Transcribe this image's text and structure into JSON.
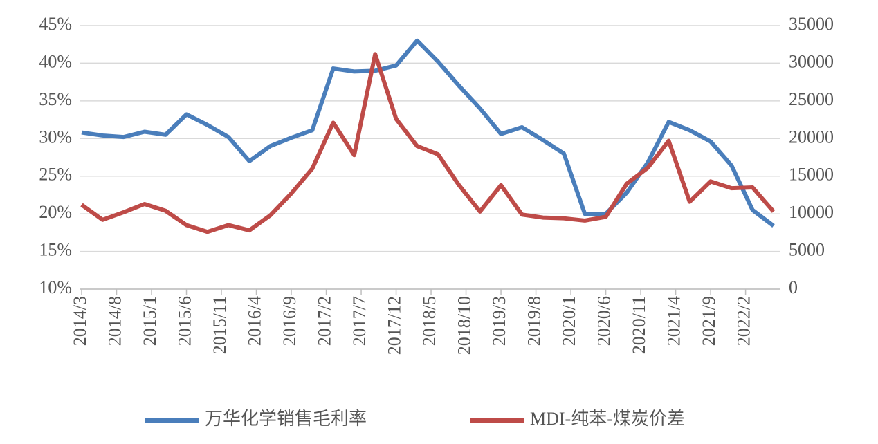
{
  "chart_data": {
    "type": "line",
    "x": [
      "2014/3",
      "2014/6",
      "2014/9",
      "2014/12",
      "2015/3",
      "2015/6",
      "2015/9",
      "2015/12",
      "2016/3",
      "2016/6",
      "2016/9",
      "2016/12",
      "2017/3",
      "2017/6",
      "2017/9",
      "2017/12",
      "2018/3",
      "2018/6",
      "2018/9",
      "2018/12",
      "2019/3",
      "2019/6",
      "2019/9",
      "2019/12",
      "2020/3",
      "2020/6",
      "2020/9",
      "2020/12",
      "2021/3",
      "2021/6",
      "2021/9",
      "2021/12",
      "2022/3",
      "2022/6"
    ],
    "xticks": [
      "2014/3",
      "2014/8",
      "2015/1",
      "2015/6",
      "2015/11",
      "2016/4",
      "2016/9",
      "2017/2",
      "2017/7",
      "2017/12",
      "2018/5",
      "2018/10",
      "2019/3",
      "2019/8",
      "2020/1",
      "2020/6",
      "2020/11",
      "2021/4",
      "2021/9",
      "2022/2"
    ],
    "series": [
      {
        "name": "万华化学销售毛利率",
        "color": "#4a7ebb",
        "values": [
          30.8,
          30.4,
          30.2,
          30.9,
          30.5,
          33.2,
          31.8,
          30.2,
          27.0,
          29.0,
          30.1,
          31.1,
          39.3,
          38.9,
          39.0,
          39.7,
          43.0,
          40.2,
          37.0,
          34.0,
          30.6,
          31.5,
          29.8,
          28.0,
          20.0,
          20.0,
          22.8,
          26.8,
          32.2,
          31.1,
          29.6,
          26.4,
          20.5,
          18.4
        ]
      },
      {
        "name": "MDI-纯苯-煤炭价差",
        "color": "#be4b48",
        "axis": "y2",
        "values": [
          11200,
          9200,
          10200,
          11300,
          10400,
          8500,
          7600,
          8500,
          7800,
          9800,
          12700,
          16000,
          22100,
          17800,
          31200,
          22600,
          19000,
          17900,
          13800,
          10300,
          13800,
          9900,
          9500,
          9400,
          9100,
          9600,
          14000,
          16100,
          19700,
          11600,
          14300,
          13400,
          13500,
          10300
        ]
      }
    ],
    "ylim": [
      10,
      45
    ],
    "yticks": [
      {
        "value": 10,
        "label": "10%"
      },
      {
        "value": 15,
        "label": "15%"
      },
      {
        "value": 20,
        "label": "20%"
      },
      {
        "value": 25,
        "label": "25%"
      },
      {
        "value": 30,
        "label": "30%"
      },
      {
        "value": 35,
        "label": "35%"
      },
      {
        "value": 40,
        "label": "40%"
      },
      {
        "value": 45,
        "label": "45%"
      }
    ],
    "y2lim": [
      0,
      35000
    ],
    "y2ticks": [
      0,
      5000,
      10000,
      15000,
      20000,
      25000,
      30000,
      35000
    ],
    "grid": true,
    "legend": "bottom"
  }
}
